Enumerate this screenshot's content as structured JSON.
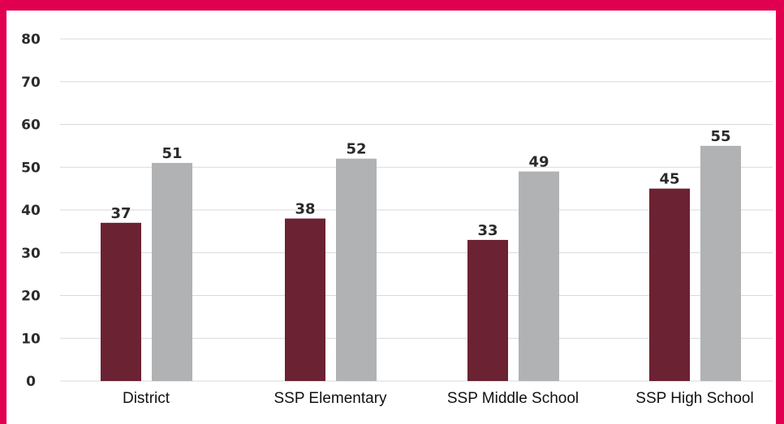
{
  "chart_data": {
    "type": "bar",
    "title": "",
    "xlabel": "",
    "ylabel": "",
    "categories": [
      "District",
      "SSP Elementary",
      "SSP Middle School",
      "SSP High School"
    ],
    "series": [
      {
        "values": [
          37,
          38,
          33,
          45
        ],
        "color": "#6b2233"
      },
      {
        "values": [
          51,
          52,
          49,
          55
        ],
        "color": "#b1b2b4"
      }
    ],
    "ylim": [
      0,
      80
    ],
    "yticks": [
      0,
      10,
      20,
      30,
      40,
      50,
      60,
      70,
      80
    ],
    "grid": true,
    "legend": "none"
  },
  "colors": {
    "frame": "#e0004f",
    "background": "#ffffff",
    "gridline": "#d9d9d9"
  }
}
